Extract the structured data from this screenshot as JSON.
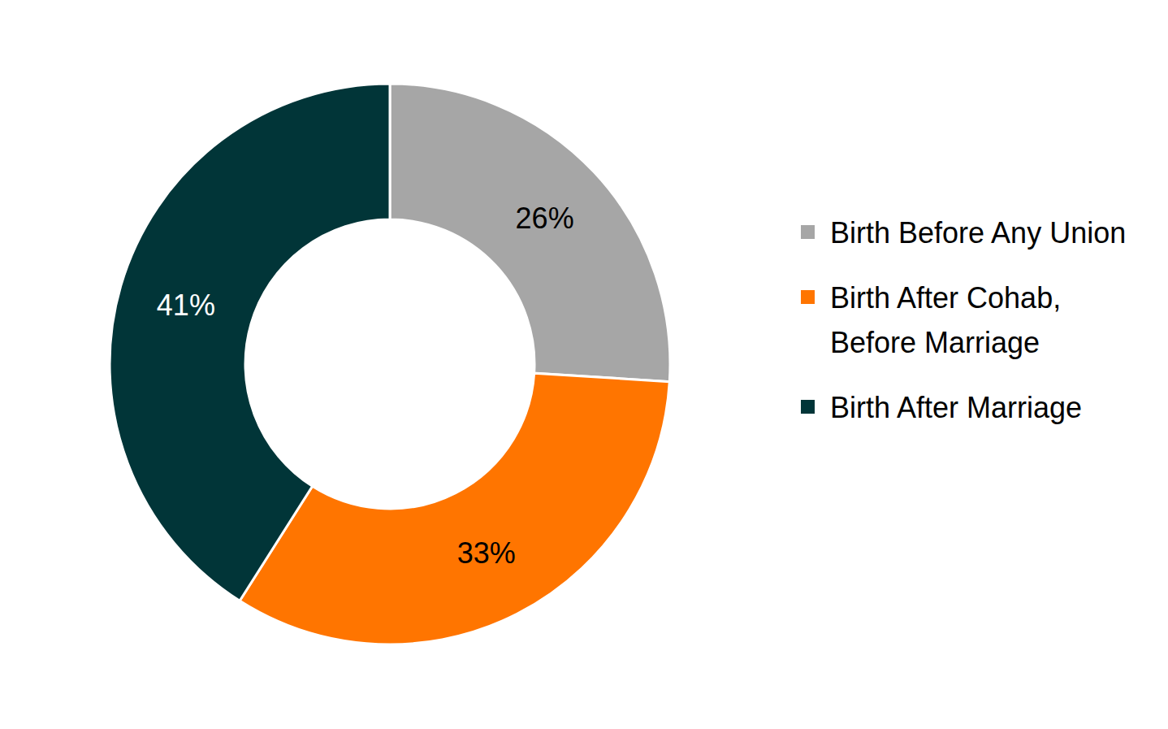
{
  "chart_data": {
    "type": "pie",
    "categories": [
      "Birth Before Any Union",
      "Birth After Cohab, Before Marriage",
      "Birth After Marriage"
    ],
    "values": [
      26,
      33,
      41
    ],
    "value_labels": [
      "26%",
      "33%",
      "41%"
    ],
    "colors": [
      "#a6a6a6",
      "#ff7500",
      "#013538"
    ],
    "data_labels": true,
    "legend": "right"
  }
}
